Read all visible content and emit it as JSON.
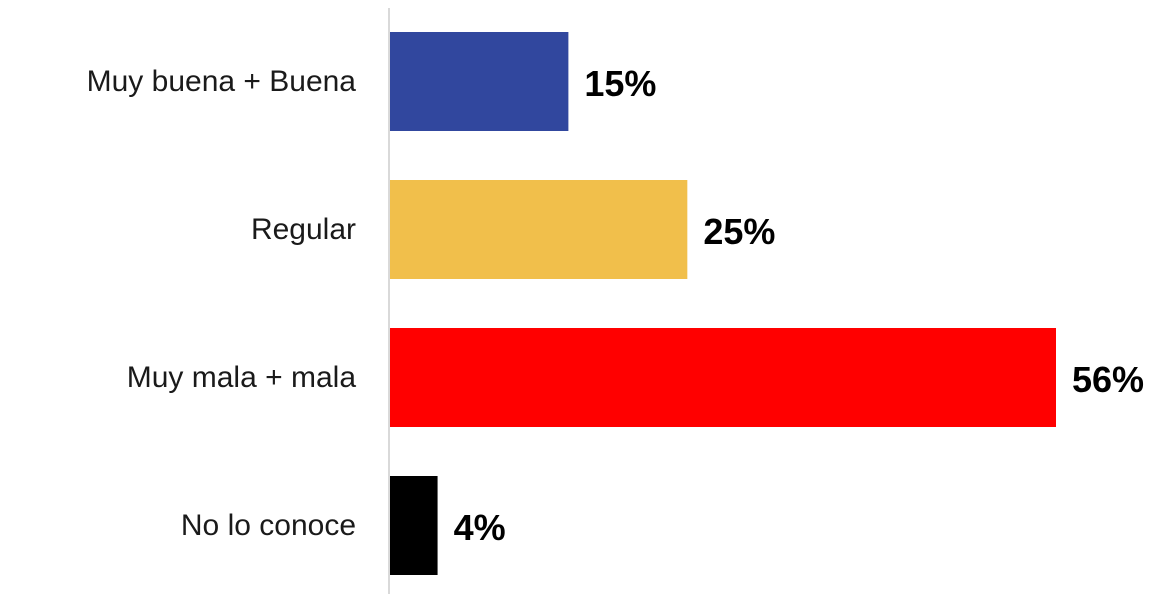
{
  "chart_data": {
    "type": "bar",
    "orientation": "horizontal",
    "categories": [
      "Muy buena + Buena",
      "Regular",
      "Muy mala + mala",
      "No lo conoce"
    ],
    "values": [
      15,
      25,
      56,
      4
    ],
    "value_labels": [
      "15%",
      "25%",
      "56%",
      "4%"
    ],
    "colors": [
      "#31479e",
      "#f1bf4b",
      "#ff0000",
      "#000000"
    ],
    "axis_color": "#d9d9d9",
    "xlim": [
      0,
      56
    ],
    "grid": false,
    "legend": "none"
  }
}
